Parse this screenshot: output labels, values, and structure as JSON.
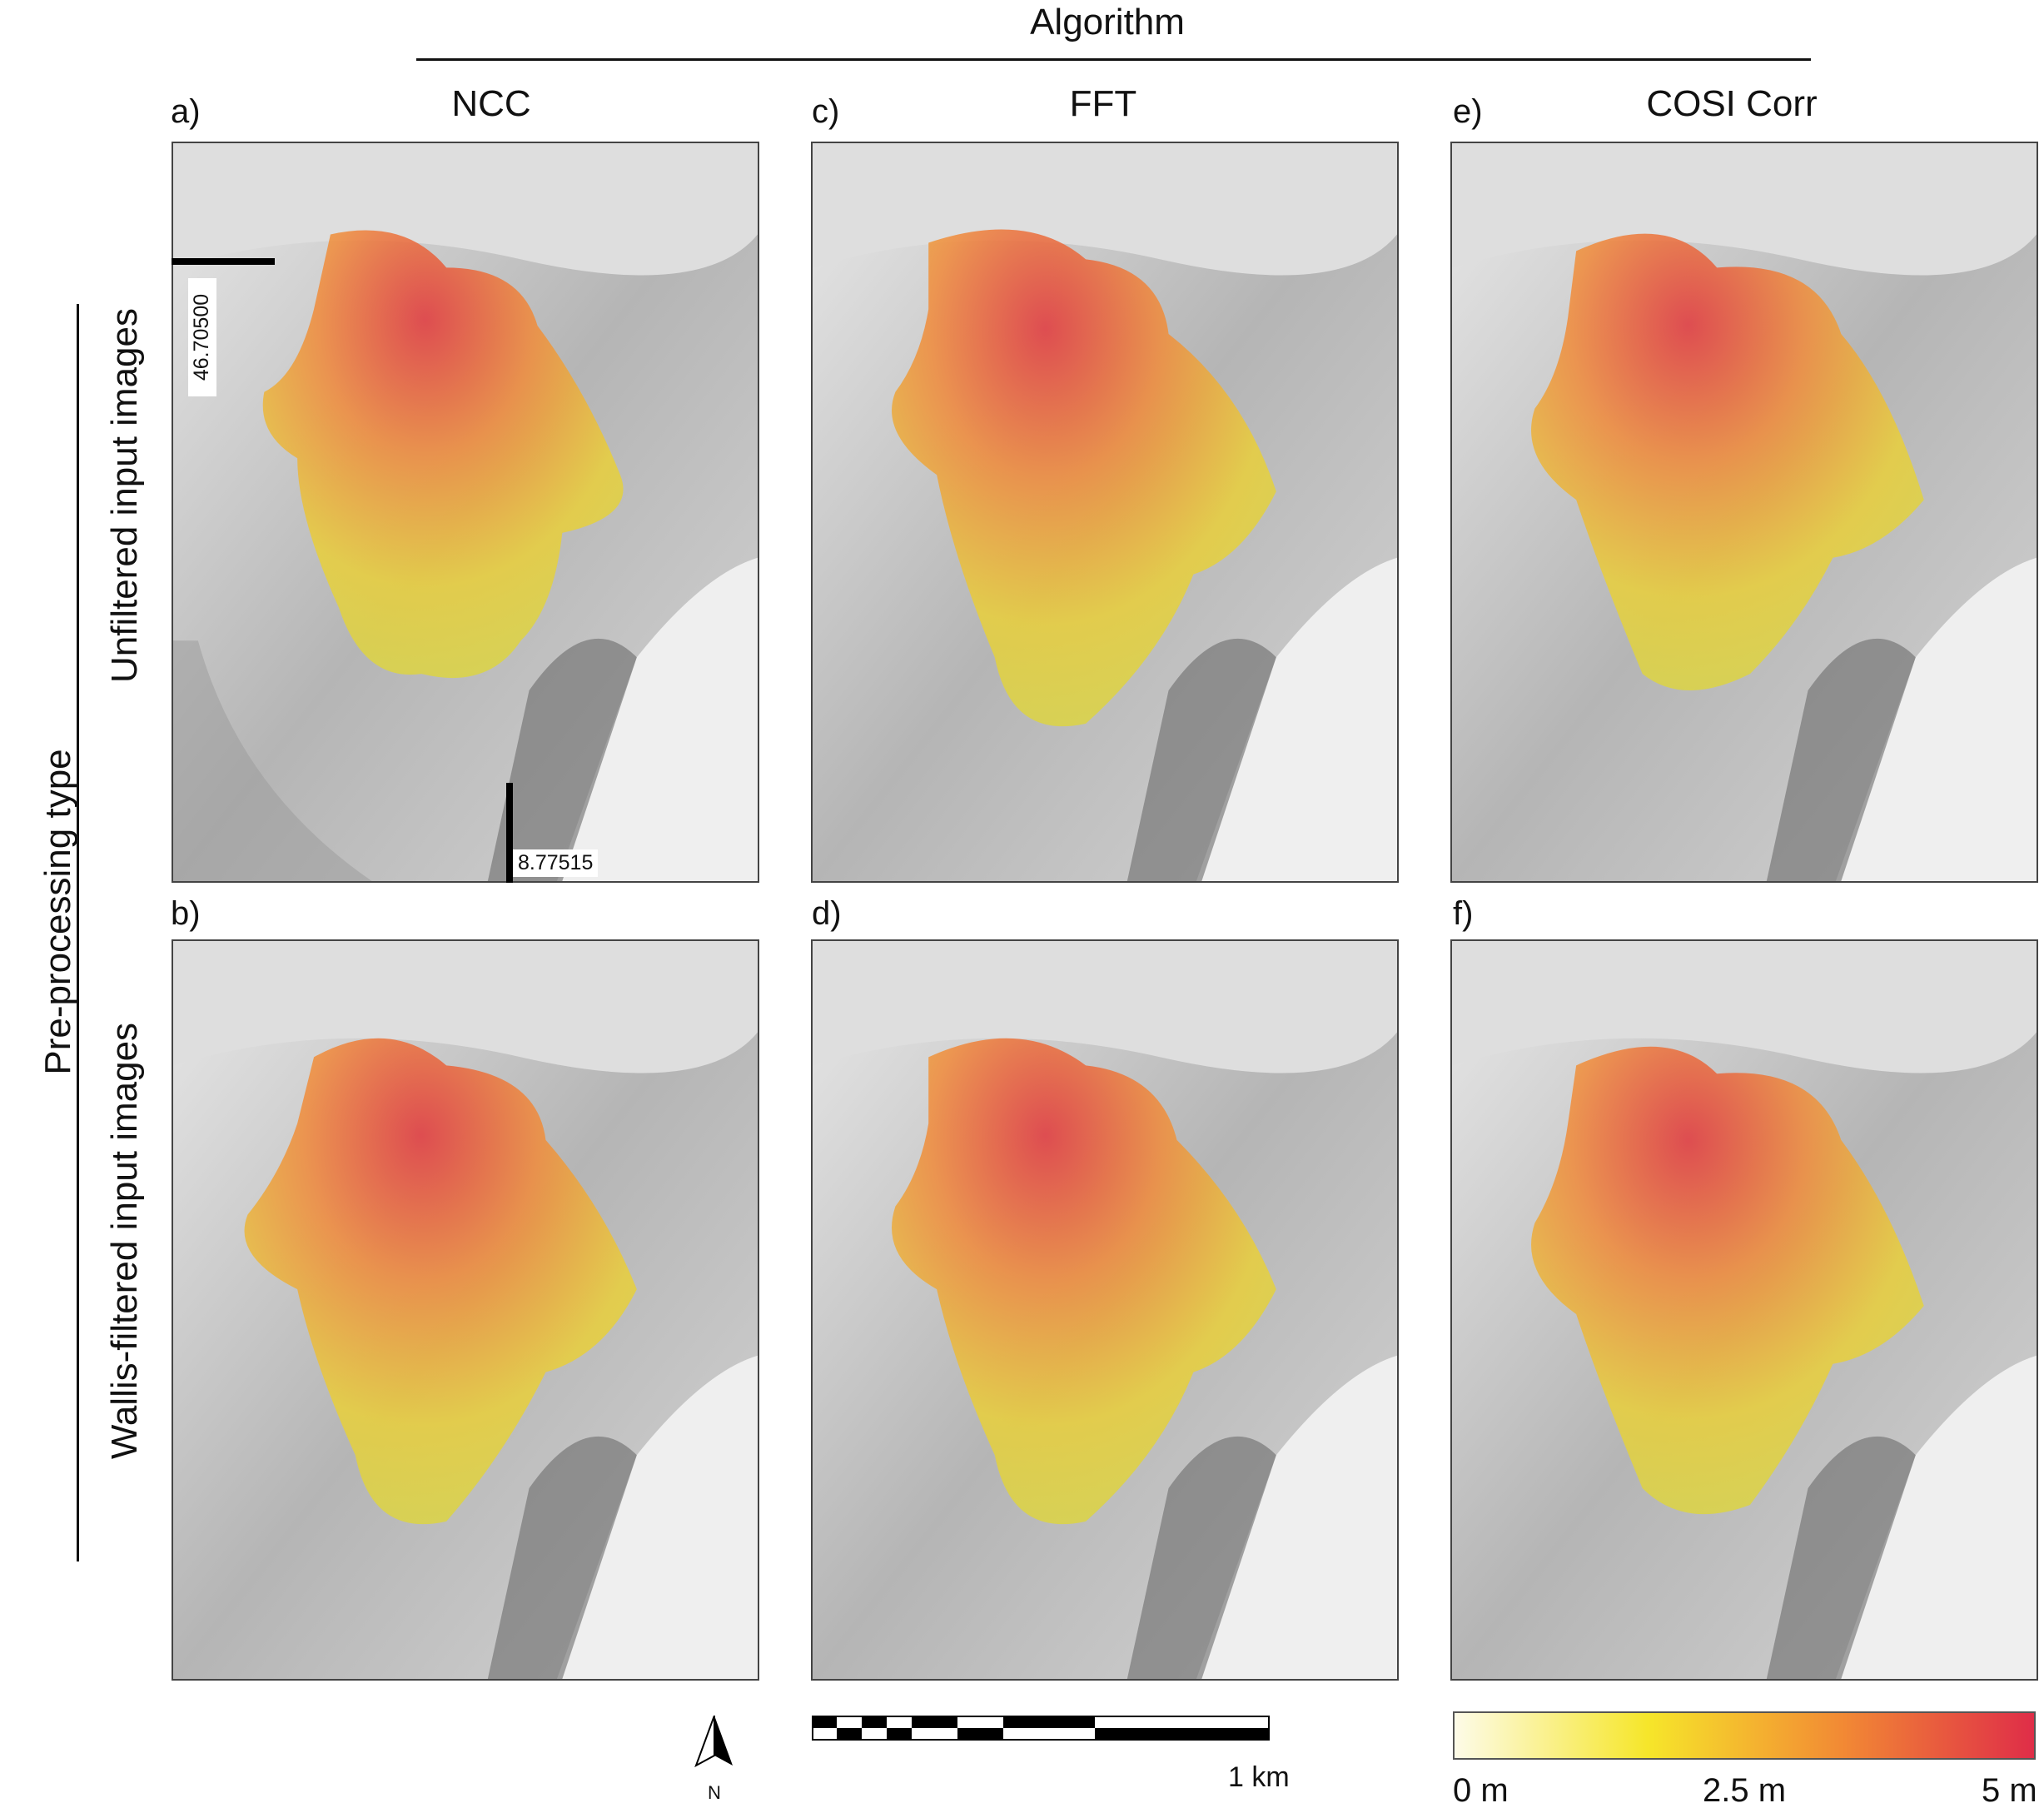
{
  "header": {
    "algorithm": "Algorithm"
  },
  "columns": [
    {
      "title": "NCC"
    },
    {
      "title": "FFT"
    },
    {
      "title": "COSI Corr"
    }
  ],
  "axis_side": {
    "preprocessing": "Pre-processing type",
    "rows": [
      {
        "label": "Unfiltered input images"
      },
      {
        "label": "Wallis-filtered input images"
      }
    ]
  },
  "panels": [
    {
      "letter": "a)"
    },
    {
      "letter": "c)"
    },
    {
      "letter": "e)"
    },
    {
      "letter": "b)"
    },
    {
      "letter": "d)"
    },
    {
      "letter": "f)"
    }
  ],
  "coordinates": {
    "lat": "46.70500",
    "lon": "8.77515"
  },
  "north_arrow": {
    "label": "N"
  },
  "scale_bar": {
    "label": "1 km"
  },
  "colorbar": {
    "colors": [
      "#fdfbe8",
      "#f6e62a",
      "#f28a34",
      "#df2d48"
    ],
    "min_label": "0 m",
    "mid_label": "2.5 m",
    "max_label": "5 m"
  }
}
